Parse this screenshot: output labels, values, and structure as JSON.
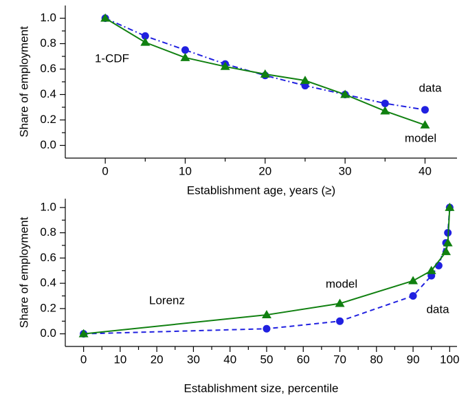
{
  "chart_data": [
    {
      "type": "line",
      "xlabel": "Establishment age, years (≥)",
      "ylabel": "Share of employment",
      "annotations": [
        "1-CDF",
        "data",
        "model"
      ],
      "xlim": [
        -5,
        44
      ],
      "xticks": [
        0,
        10,
        20,
        30,
        40
      ],
      "ylim": [
        -0.1,
        1.1
      ],
      "yticks": [
        {
          "value": 0,
          "label": "0.0"
        },
        0.2,
        0.4,
        0.6,
        0.8,
        {
          "value": 1,
          "label": "1.0"
        }
      ],
      "series": [
        {
          "name": "data",
          "color": "#2020e0",
          "marker": "circle",
          "line": "dashdot",
          "x": [
            0,
            5,
            10,
            15,
            20,
            25,
            30,
            35,
            40
          ],
          "values": [
            1.0,
            0.86,
            0.75,
            0.64,
            0.55,
            0.47,
            0.4,
            0.33,
            0.28
          ]
        },
        {
          "name": "model",
          "color": "#108010",
          "marker": "triangle",
          "line": "solid",
          "x": [
            0,
            5,
            10,
            15,
            20,
            25,
            30,
            35,
            40
          ],
          "values": [
            1.0,
            0.81,
            0.69,
            0.62,
            0.56,
            0.51,
            0.4,
            0.27,
            0.16
          ]
        }
      ]
    },
    {
      "type": "line",
      "xlabel": "Establishment size, percentile",
      "ylabel": "Share of employment",
      "annotations": [
        "Lorenz",
        "model",
        "data"
      ],
      "xlim": [
        -5,
        102
      ],
      "xticks": [
        0,
        10,
        20,
        30,
        40,
        50,
        60,
        70,
        80,
        90,
        100
      ],
      "ylim": [
        -0.1,
        1.07
      ],
      "yticks": [
        {
          "value": 0,
          "label": "0.0"
        },
        0.2,
        0.4,
        0.6,
        0.8,
        {
          "value": 1,
          "label": "1.0"
        }
      ],
      "series": [
        {
          "name": "data",
          "color": "#2020e0",
          "marker": "circle",
          "line": "dashed",
          "x": [
            0,
            50,
            70,
            90,
            95,
            97,
            99,
            99.5,
            100
          ],
          "values": [
            0,
            0.04,
            0.1,
            0.3,
            0.46,
            0.54,
            0.72,
            0.8,
            1.0
          ]
        },
        {
          "name": "model",
          "color": "#108010",
          "marker": "triangle",
          "line": "solid",
          "x": [
            0,
            50,
            70,
            90,
            95,
            99,
            99.5,
            100
          ],
          "values": [
            0,
            0.15,
            0.24,
            0.42,
            0.5,
            0.65,
            0.72,
            1.0
          ]
        }
      ]
    }
  ]
}
